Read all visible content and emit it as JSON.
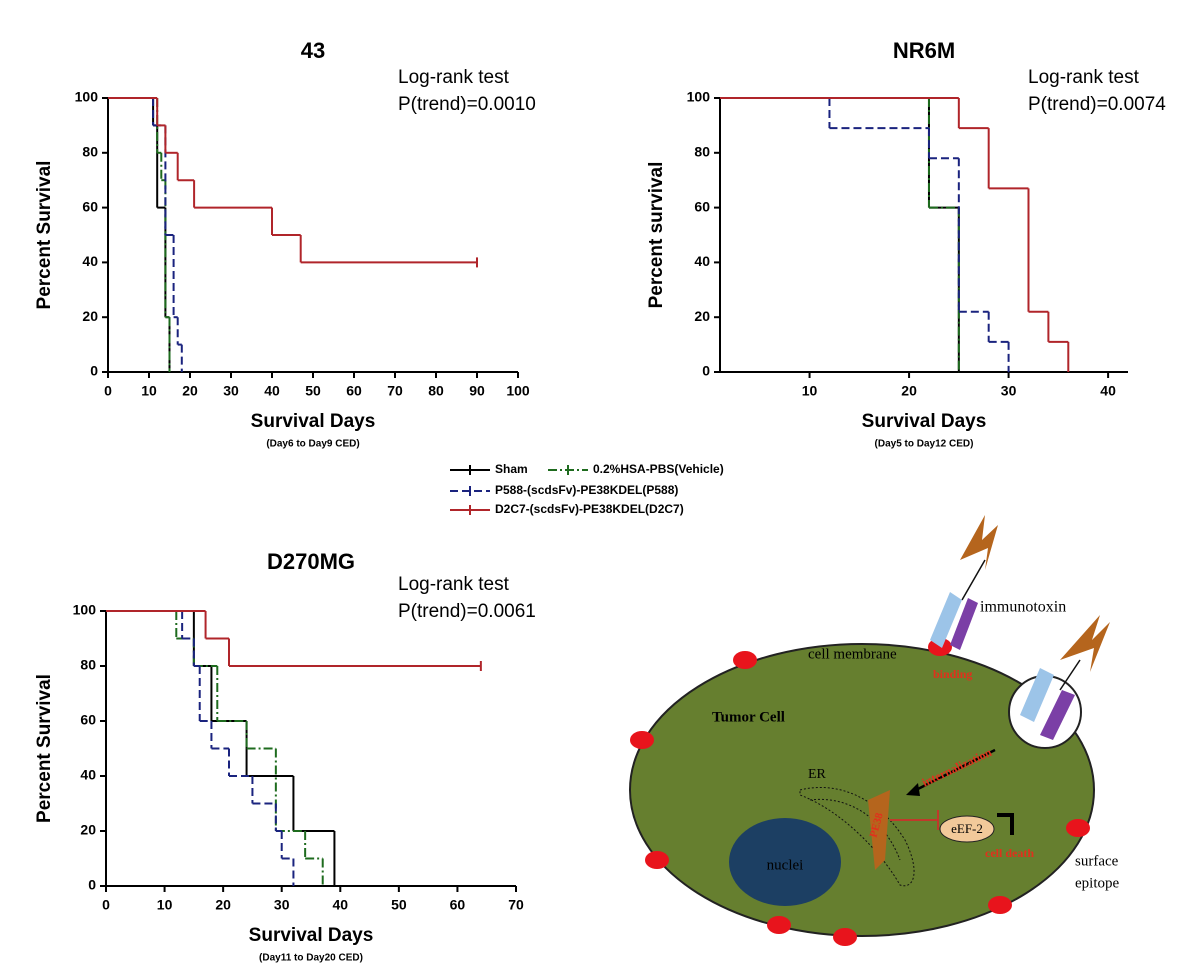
{
  "chart_data": [
    {
      "type": "line",
      "step": true,
      "title": "43",
      "annotations": [
        "Log-rank test",
        "P(trend)=0.0010"
      ],
      "xlabel": "Survival Days",
      "subtitle": "(Day6 to Day9 CED)",
      "ylabel": "Percent Survival",
      "xlim": [
        0,
        100
      ],
      "xticks": [
        0,
        10,
        20,
        30,
        40,
        50,
        60,
        70,
        80,
        90,
        100
      ],
      "ylim": [
        0,
        100
      ],
      "yticks": [
        0,
        20,
        40,
        60,
        80,
        100
      ],
      "series": [
        {
          "name": "Sham",
          "color": "#000000",
          "dash": "solid",
          "x": [
            0,
            11,
            12,
            14,
            15
          ],
          "values": [
            100,
            90,
            60,
            20,
            0
          ]
        },
        {
          "name": "0.2%HSA-PBS(Vehicle)",
          "color": "#1e6b1e",
          "dash": "dashdot",
          "x": [
            0,
            12,
            13,
            14,
            15
          ],
          "values": [
            100,
            80,
            70,
            20,
            0
          ]
        },
        {
          "name": "P588-(scdsFv)-PE38KDEL(P588)",
          "color": "#1a237e",
          "dash": "dashed",
          "x": [
            0,
            11,
            14,
            16,
            17,
            18
          ],
          "values": [
            100,
            90,
            50,
            20,
            10,
            0
          ]
        },
        {
          "name": "D2C7-(scdsFv)-PE38KDEL(D2C7)",
          "color": "#b0252a",
          "dash": "solid",
          "x": [
            0,
            12,
            14,
            17,
            21,
            40,
            47,
            90
          ],
          "values": [
            100,
            90,
            80,
            70,
            60,
            50,
            40,
            40
          ]
        }
      ]
    },
    {
      "type": "line",
      "step": true,
      "title": "NR6M",
      "annotations": [
        "Log-rank test",
        "P(trend)=0.0074"
      ],
      "xlabel": "Survival Days",
      "subtitle": "(Day5 to Day12 CED)",
      "ylabel": "Percent survival",
      "xlim": [
        1,
        42
      ],
      "xticks": [
        10,
        20,
        30,
        40
      ],
      "ylim": [
        0,
        100
      ],
      "yticks": [
        0,
        20,
        40,
        60,
        80,
        100
      ],
      "series": [
        {
          "color": "#000000",
          "dash": "solid",
          "x": [
            0,
            22,
            25
          ],
          "values": [
            100,
            60,
            0
          ]
        },
        {
          "color": "#1e6b1e",
          "dash": "dashdot",
          "x": [
            0,
            22,
            25
          ],
          "values": [
            100,
            60,
            0
          ]
        },
        {
          "color": "#1a237e",
          "dash": "dashed",
          "x": [
            0,
            12,
            22,
            25,
            28,
            30
          ],
          "values": [
            100,
            89,
            78,
            22,
            11,
            0
          ]
        },
        {
          "color": "#b0252a",
          "dash": "solid",
          "x": [
            0,
            25,
            28,
            32,
            34,
            36
          ],
          "values": [
            100,
            89,
            67,
            22,
            11,
            0
          ]
        }
      ]
    },
    {
      "type": "line",
      "step": true,
      "title": "D270MG",
      "annotations": [
        "Log-rank test",
        "P(trend)=0.0061"
      ],
      "xlabel": "Survival Days",
      "subtitle": "(Day11 to Day20 CED)",
      "ylabel": "Percent Survival",
      "xlim": [
        0,
        70
      ],
      "xticks": [
        0,
        10,
        20,
        30,
        40,
        50,
        60,
        70
      ],
      "ylim": [
        0,
        100
      ],
      "yticks": [
        0,
        20,
        40,
        60,
        80,
        100
      ],
      "series": [
        {
          "color": "#000000",
          "dash": "solid",
          "x": [
            0,
            15,
            18,
            24,
            32,
            39
          ],
          "values": [
            100,
            80,
            60,
            40,
            20,
            0
          ]
        },
        {
          "color": "#1e6b1e",
          "dash": "dashdot",
          "x": [
            0,
            12,
            15,
            19,
            24,
            29,
            34,
            37
          ],
          "values": [
            100,
            90,
            80,
            60,
            50,
            20,
            10,
            0
          ]
        },
        {
          "color": "#1a237e",
          "dash": "dashed",
          "x": [
            0,
            13,
            15,
            16,
            18,
            21,
            25,
            29,
            30,
            32
          ],
          "values": [
            100,
            90,
            80,
            60,
            50,
            40,
            30,
            20,
            10,
            0
          ]
        },
        {
          "color": "#b0252a",
          "dash": "solid",
          "x": [
            0,
            17,
            21,
            64
          ],
          "values": [
            100,
            90,
            80,
            80
          ]
        }
      ]
    }
  ],
  "diagram": {
    "labels": [
      "immunotoxin",
      "cell membrane",
      "binding",
      "Tumor Cell",
      "internalization",
      "ER",
      "PE38",
      "eEF-2",
      "cell death",
      "nuclei",
      "surface",
      "epitope"
    ]
  }
}
